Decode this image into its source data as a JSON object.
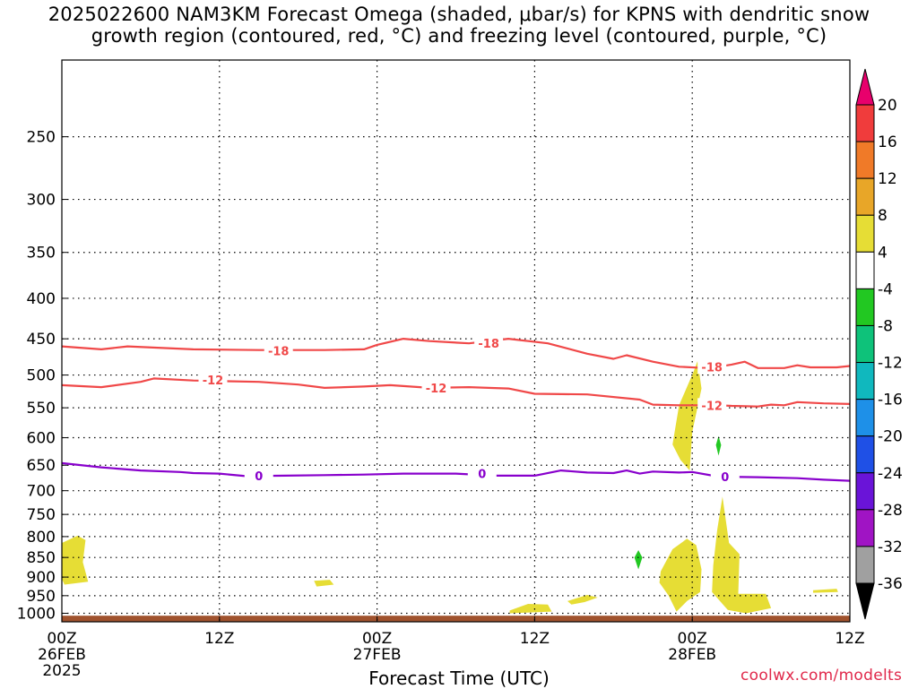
{
  "title_line1": "2025022600 NAM3KM Forecast Omega (shaded, μbar/s) for KPNS with dendritic snow",
  "title_line2": "growth region (contoured, red, °C) and freezing level (contoured, purple, °C)",
  "credit": "coolwx.com/modelts",
  "chart_data": {
    "type": "time-height contour",
    "title": "2025022600 NAM3KM Forecast Omega (shaded, μbar/s) for KPNS with dendritic snow growth region (contoured, red, °C) and freezing level (contoured, purple, °C)",
    "xlabel": "Forecast Time (UTC)",
    "ylabel": "",
    "x_ticks": [
      {
        "hour": 0,
        "label": "00Z",
        "sub": "26FEB",
        "sub2": "2025"
      },
      {
        "hour": 12,
        "label": "12Z",
        "sub": "",
        "sub2": ""
      },
      {
        "hour": 24,
        "label": "00Z",
        "sub": "27FEB",
        "sub2": ""
      },
      {
        "hour": 36,
        "label": "12Z",
        "sub": "",
        "sub2": ""
      },
      {
        "hour": 48,
        "label": "00Z",
        "sub": "28FEB",
        "sub2": ""
      },
      {
        "hour": 60,
        "label": "12Z",
        "sub": "",
        "sub2": ""
      }
    ],
    "y_ticks": [
      250,
      300,
      350,
      400,
      450,
      500,
      550,
      600,
      650,
      700,
      750,
      800,
      850,
      900,
      950,
      1000
    ],
    "xlim": [
      0,
      60
    ],
    "ylim_hPa": [
      200,
      1025
    ],
    "y_scale": "log",
    "grid": true,
    "colorbar": {
      "levels": [
        20,
        16,
        12,
        8,
        4,
        -4,
        -8,
        -12,
        -16,
        -20,
        -24,
        -28,
        -32,
        -36
      ],
      "colors": [
        "#e8006c",
        "#f03c3c",
        "#f07a28",
        "#e8a628",
        "#e6dd35",
        "#ffffff",
        "#22c822",
        "#0ec27a",
        "#10b8be",
        "#1e90e8",
        "#1f50e6",
        "#6a14d8",
        "#a014c4",
        "#a0a0a0",
        "#000000"
      ]
    },
    "contours": [
      {
        "value": -18,
        "color": "#f04848",
        "label": "-18",
        "points": [
          [
            0,
            460
          ],
          [
            3,
            464
          ],
          [
            5,
            460
          ],
          [
            10,
            464
          ],
          [
            15,
            465
          ],
          [
            20,
            465
          ],
          [
            23,
            464
          ],
          [
            24,
            458
          ],
          [
            26,
            450
          ],
          [
            28,
            453
          ],
          [
            31,
            456
          ],
          [
            34,
            450
          ],
          [
            37,
            456
          ],
          [
            40,
            470
          ],
          [
            42,
            477
          ],
          [
            43,
            472
          ],
          [
            45,
            481
          ],
          [
            47,
            488
          ],
          [
            49,
            490
          ],
          [
            50,
            488
          ],
          [
            51,
            485
          ],
          [
            52,
            481
          ],
          [
            53,
            490
          ],
          [
            55,
            490
          ],
          [
            56,
            486
          ],
          [
            57,
            489
          ],
          [
            59,
            489
          ],
          [
            60,
            487
          ]
        ],
        "label_at": [
          [
            16.5,
            466
          ],
          [
            32.5,
            456
          ],
          [
            49.5,
            488
          ]
        ]
      },
      {
        "value": -12,
        "color": "#f04848",
        "label": "-12",
        "points": [
          [
            0,
            515
          ],
          [
            3,
            518
          ],
          [
            6,
            510
          ],
          [
            7,
            505
          ],
          [
            10,
            508
          ],
          [
            15,
            510
          ],
          [
            18,
            514
          ],
          [
            20,
            519
          ],
          [
            23,
            517
          ],
          [
            25,
            515
          ],
          [
            28,
            519
          ],
          [
            31,
            518
          ],
          [
            34,
            520
          ],
          [
            36,
            528
          ],
          [
            40,
            529
          ],
          [
            44,
            537
          ],
          [
            45,
            545
          ],
          [
            47,
            546
          ],
          [
            50,
            546
          ],
          [
            51,
            547
          ],
          [
            53,
            548
          ],
          [
            54,
            545
          ],
          [
            55,
            546
          ],
          [
            56,
            541
          ],
          [
            58,
            543
          ],
          [
            60,
            544
          ]
        ],
        "label_at": [
          [
            11.5,
            507
          ],
          [
            28.5,
            519
          ],
          [
            49.5,
            546
          ]
        ]
      },
      {
        "value": 0,
        "color": "#8800cc",
        "label": "0",
        "points": [
          [
            0,
            646
          ],
          [
            3,
            654
          ],
          [
            6,
            660
          ],
          [
            9,
            663
          ],
          [
            10,
            665
          ],
          [
            12,
            666
          ],
          [
            14,
            671
          ],
          [
            17,
            670
          ],
          [
            20,
            669
          ],
          [
            23,
            668
          ],
          [
            26,
            666
          ],
          [
            30,
            666
          ],
          [
            33,
            670
          ],
          [
            36,
            670
          ],
          [
            38,
            660
          ],
          [
            40,
            664
          ],
          [
            42,
            665
          ],
          [
            43,
            660
          ],
          [
            44,
            666
          ],
          [
            45,
            662
          ],
          [
            47,
            664
          ],
          [
            48,
            663
          ],
          [
            50,
            672
          ],
          [
            53,
            673
          ],
          [
            56,
            675
          ],
          [
            58,
            678
          ],
          [
            60,
            680
          ]
        ],
        "label_at": [
          [
            15,
            670
          ],
          [
            32,
            666
          ],
          [
            50.5,
            672
          ]
        ]
      }
    ],
    "omega_shaded_regions": [
      {
        "value_range": [
          4,
          8
        ],
        "color": "#e6dd35",
        "points": [
          [
            0,
            815
          ],
          [
            1.2,
            798
          ],
          [
            1.8,
            808
          ],
          [
            1.6,
            862
          ],
          [
            2.0,
            912
          ],
          [
            0.2,
            920
          ],
          [
            0,
            905
          ]
        ]
      },
      {
        "value_range": [
          4,
          8
        ],
        "color": "#e6dd35",
        "points": [
          [
            19.2,
            910
          ],
          [
            20.4,
            907
          ],
          [
            20.7,
            920
          ],
          [
            19.4,
            925
          ]
        ]
      },
      {
        "value_range": [
          4,
          8
        ],
        "color": "#e6dd35",
        "points": [
          [
            34.1,
            992
          ],
          [
            35.5,
            973
          ],
          [
            37.0,
            975
          ],
          [
            37.3,
            995
          ],
          [
            34.1,
            1000
          ]
        ]
      },
      {
        "value_range": [
          4,
          8
        ],
        "color": "#e6dd35",
        "points": [
          [
            38.5,
            965
          ],
          [
            40.0,
            948
          ],
          [
            40.8,
            955
          ],
          [
            39.8,
            968
          ],
          [
            38.8,
            975
          ]
        ]
      },
      {
        "value_range": [
          4,
          8
        ],
        "color": "#e6dd35",
        "points": [
          [
            46.5,
            612
          ],
          [
            47.0,
            546
          ],
          [
            48.1,
            495
          ],
          [
            48.4,
            480
          ],
          [
            48.7,
            520
          ],
          [
            48.0,
            590
          ],
          [
            47.8,
            660
          ],
          [
            47.1,
            640
          ]
        ]
      },
      {
        "value_range": [
          4,
          8
        ],
        "color": "#e6dd35",
        "points": [
          [
            45.6,
            885
          ],
          [
            46.5,
            830
          ],
          [
            47.6,
            805
          ],
          [
            48.3,
            820
          ],
          [
            48.7,
            880
          ],
          [
            48.6,
            940
          ],
          [
            47.6,
            965
          ],
          [
            46.8,
            995
          ],
          [
            46.2,
            950
          ],
          [
            45.5,
            915
          ]
        ]
      },
      {
        "value_range": [
          4,
          8
        ],
        "color": "#e6dd35",
        "points": [
          [
            49.6,
            870
          ],
          [
            49.9,
            785
          ],
          [
            50.3,
            712
          ],
          [
            50.8,
            815
          ],
          [
            51.6,
            842
          ],
          [
            51.5,
            945
          ],
          [
            53.6,
            945
          ],
          [
            54.0,
            985
          ],
          [
            52.1,
            1000
          ],
          [
            50.7,
            990
          ],
          [
            49.5,
            940
          ]
        ]
      },
      {
        "value_range": [
          4,
          8
        ],
        "color": "#e6dd35",
        "points": [
          [
            57.2,
            935
          ],
          [
            59.0,
            931
          ],
          [
            59.1,
            940
          ],
          [
            57.2,
            942
          ]
        ]
      },
      {
        "value_range": [
          -8,
          -4
        ],
        "color": "#22c822",
        "points": [
          [
            43.6,
            850
          ],
          [
            43.9,
            832
          ],
          [
            44.2,
            850
          ],
          [
            43.9,
            880
          ]
        ]
      },
      {
        "value_range": [
          -8,
          -4
        ],
        "color": "#22c822",
        "points": [
          [
            49.8,
            613
          ],
          [
            50.0,
            597
          ],
          [
            50.2,
            613
          ],
          [
            50.0,
            632
          ]
        ]
      }
    ],
    "ground_band": {
      "color": "#a0522d",
      "top_hPa": 1007,
      "bottom_hPa": 1025
    }
  }
}
